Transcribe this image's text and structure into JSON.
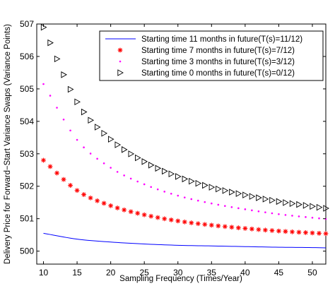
{
  "chart_data": {
    "type": "scatter",
    "title": "",
    "xlabel": "Sampling Frequency (Times/Year)",
    "ylabel": "Delivery Price for Forward−Start Variance Swaps (Variance Points)",
    "xlim": [
      9,
      52
    ],
    "ylim": [
      499.6,
      507
    ],
    "xticks": [
      10,
      15,
      20,
      25,
      30,
      35,
      40,
      45,
      50
    ],
    "yticks": [
      500,
      501,
      502,
      503,
      504,
      505,
      506,
      507
    ],
    "grid": false,
    "legend_position": "top-right",
    "x_start": 10,
    "x_end": 52,
    "series": [
      {
        "name": "Starting time 11 months in future(T(s)=11/12)",
        "marker": "line",
        "color": "#0000ff",
        "x": [
          10,
          15,
          20,
          25,
          30,
          35,
          40,
          45,
          50,
          52
        ],
        "values": [
          500.55,
          500.37,
          500.28,
          500.22,
          500.18,
          500.16,
          500.14,
          500.12,
          500.11,
          500.1
        ]
      },
      {
        "name": "Starting time 7 months in future(T(s)=7/12)",
        "marker": "asterisk",
        "color": "#ff0000",
        "x": [
          10,
          15,
          20,
          25,
          30,
          35,
          40,
          45,
          50,
          52
        ],
        "values": [
          502.8,
          501.87,
          501.4,
          501.12,
          500.93,
          500.8,
          500.7,
          500.62,
          500.56,
          500.54
        ]
      },
      {
        "name": "Starting time 3 months in future(T(s)=3/12)",
        "marker": "dot",
        "color": "#ff00ff",
        "x": [
          10,
          15,
          20,
          25,
          30,
          35,
          40,
          45,
          50,
          52
        ],
        "values": [
          505.15,
          503.43,
          502.57,
          502.06,
          501.71,
          501.47,
          501.29,
          501.14,
          501.03,
          500.99
        ]
      },
      {
        "name": "Starting time 0 months in future(T(s)=0/12)",
        "marker": "triangle-right",
        "color": "#000000",
        "x": [
          10,
          15,
          20,
          25,
          30,
          35,
          40,
          45,
          50,
          52
        ],
        "values": [
          506.9,
          504.6,
          503.45,
          502.76,
          502.3,
          501.97,
          501.73,
          501.53,
          501.38,
          501.32
        ]
      }
    ]
  }
}
